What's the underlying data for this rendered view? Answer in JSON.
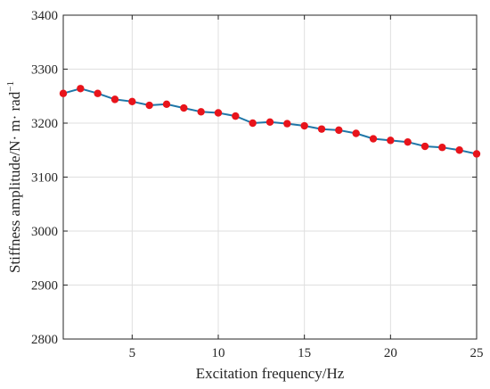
{
  "chart_data": {
    "type": "line",
    "title": "",
    "xlabel": "Excitation frequency/Hz",
    "ylabel": "Stiffness amplitude/N· m· rad",
    "ylabel_superscript": "−1",
    "xlim": [
      1,
      25
    ],
    "ylim": [
      2800,
      3400
    ],
    "x_ticks": [
      5,
      10,
      15,
      20,
      25
    ],
    "y_ticks": [
      2800,
      2900,
      3000,
      3100,
      3200,
      3300,
      3400
    ],
    "grid": true,
    "series": [
      {
        "x": [
          1,
          2,
          3,
          4,
          5,
          6,
          7,
          8,
          9,
          10,
          11,
          12,
          13,
          14,
          15,
          16,
          17,
          18,
          19,
          20,
          21,
          22,
          23,
          24,
          25
        ],
        "values": [
          3255,
          3264,
          3255,
          3244,
          3240,
          3233,
          3235,
          3228,
          3221,
          3219,
          3213,
          3200,
          3202,
          3199,
          3195,
          3189,
          3187,
          3181,
          3171,
          3168,
          3165,
          3157,
          3155,
          3150,
          3143
        ],
        "line_color": "#1f77a8",
        "marker_color": "#e8141b"
      }
    ]
  }
}
